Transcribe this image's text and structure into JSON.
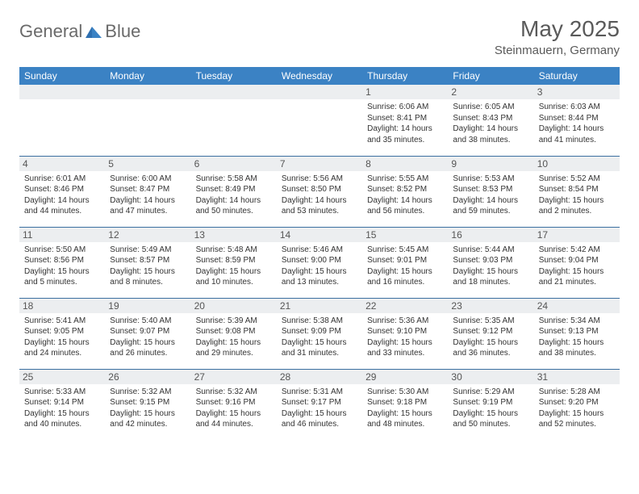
{
  "logo": {
    "textA": "General",
    "textB": "Blue"
  },
  "title": "May 2025",
  "location": "Steinmauern, Germany",
  "colors": {
    "header_bg": "#3b82c4",
    "header_text": "#ffffff",
    "border": "#3b6fa0",
    "daynum_bg": "#eceef0",
    "body_text": "#333333",
    "title_text": "#5a5a5a"
  },
  "weekdays": [
    "Sunday",
    "Monday",
    "Tuesday",
    "Wednesday",
    "Thursday",
    "Friday",
    "Saturday"
  ],
  "weeks": [
    [
      {
        "n": "",
        "sr": "",
        "ss": "",
        "dl": ""
      },
      {
        "n": "",
        "sr": "",
        "ss": "",
        "dl": ""
      },
      {
        "n": "",
        "sr": "",
        "ss": "",
        "dl": ""
      },
      {
        "n": "",
        "sr": "",
        "ss": "",
        "dl": ""
      },
      {
        "n": "1",
        "sr": "Sunrise: 6:06 AM",
        "ss": "Sunset: 8:41 PM",
        "dl": "Daylight: 14 hours and 35 minutes."
      },
      {
        "n": "2",
        "sr": "Sunrise: 6:05 AM",
        "ss": "Sunset: 8:43 PM",
        "dl": "Daylight: 14 hours and 38 minutes."
      },
      {
        "n": "3",
        "sr": "Sunrise: 6:03 AM",
        "ss": "Sunset: 8:44 PM",
        "dl": "Daylight: 14 hours and 41 minutes."
      }
    ],
    [
      {
        "n": "4",
        "sr": "Sunrise: 6:01 AM",
        "ss": "Sunset: 8:46 PM",
        "dl": "Daylight: 14 hours and 44 minutes."
      },
      {
        "n": "5",
        "sr": "Sunrise: 6:00 AM",
        "ss": "Sunset: 8:47 PM",
        "dl": "Daylight: 14 hours and 47 minutes."
      },
      {
        "n": "6",
        "sr": "Sunrise: 5:58 AM",
        "ss": "Sunset: 8:49 PM",
        "dl": "Daylight: 14 hours and 50 minutes."
      },
      {
        "n": "7",
        "sr": "Sunrise: 5:56 AM",
        "ss": "Sunset: 8:50 PM",
        "dl": "Daylight: 14 hours and 53 minutes."
      },
      {
        "n": "8",
        "sr": "Sunrise: 5:55 AM",
        "ss": "Sunset: 8:52 PM",
        "dl": "Daylight: 14 hours and 56 minutes."
      },
      {
        "n": "9",
        "sr": "Sunrise: 5:53 AM",
        "ss": "Sunset: 8:53 PM",
        "dl": "Daylight: 14 hours and 59 minutes."
      },
      {
        "n": "10",
        "sr": "Sunrise: 5:52 AM",
        "ss": "Sunset: 8:54 PM",
        "dl": "Daylight: 15 hours and 2 minutes."
      }
    ],
    [
      {
        "n": "11",
        "sr": "Sunrise: 5:50 AM",
        "ss": "Sunset: 8:56 PM",
        "dl": "Daylight: 15 hours and 5 minutes."
      },
      {
        "n": "12",
        "sr": "Sunrise: 5:49 AM",
        "ss": "Sunset: 8:57 PM",
        "dl": "Daylight: 15 hours and 8 minutes."
      },
      {
        "n": "13",
        "sr": "Sunrise: 5:48 AM",
        "ss": "Sunset: 8:59 PM",
        "dl": "Daylight: 15 hours and 10 minutes."
      },
      {
        "n": "14",
        "sr": "Sunrise: 5:46 AM",
        "ss": "Sunset: 9:00 PM",
        "dl": "Daylight: 15 hours and 13 minutes."
      },
      {
        "n": "15",
        "sr": "Sunrise: 5:45 AM",
        "ss": "Sunset: 9:01 PM",
        "dl": "Daylight: 15 hours and 16 minutes."
      },
      {
        "n": "16",
        "sr": "Sunrise: 5:44 AM",
        "ss": "Sunset: 9:03 PM",
        "dl": "Daylight: 15 hours and 18 minutes."
      },
      {
        "n": "17",
        "sr": "Sunrise: 5:42 AM",
        "ss": "Sunset: 9:04 PM",
        "dl": "Daylight: 15 hours and 21 minutes."
      }
    ],
    [
      {
        "n": "18",
        "sr": "Sunrise: 5:41 AM",
        "ss": "Sunset: 9:05 PM",
        "dl": "Daylight: 15 hours and 24 minutes."
      },
      {
        "n": "19",
        "sr": "Sunrise: 5:40 AM",
        "ss": "Sunset: 9:07 PM",
        "dl": "Daylight: 15 hours and 26 minutes."
      },
      {
        "n": "20",
        "sr": "Sunrise: 5:39 AM",
        "ss": "Sunset: 9:08 PM",
        "dl": "Daylight: 15 hours and 29 minutes."
      },
      {
        "n": "21",
        "sr": "Sunrise: 5:38 AM",
        "ss": "Sunset: 9:09 PM",
        "dl": "Daylight: 15 hours and 31 minutes."
      },
      {
        "n": "22",
        "sr": "Sunrise: 5:36 AM",
        "ss": "Sunset: 9:10 PM",
        "dl": "Daylight: 15 hours and 33 minutes."
      },
      {
        "n": "23",
        "sr": "Sunrise: 5:35 AM",
        "ss": "Sunset: 9:12 PM",
        "dl": "Daylight: 15 hours and 36 minutes."
      },
      {
        "n": "24",
        "sr": "Sunrise: 5:34 AM",
        "ss": "Sunset: 9:13 PM",
        "dl": "Daylight: 15 hours and 38 minutes."
      }
    ],
    [
      {
        "n": "25",
        "sr": "Sunrise: 5:33 AM",
        "ss": "Sunset: 9:14 PM",
        "dl": "Daylight: 15 hours and 40 minutes."
      },
      {
        "n": "26",
        "sr": "Sunrise: 5:32 AM",
        "ss": "Sunset: 9:15 PM",
        "dl": "Daylight: 15 hours and 42 minutes."
      },
      {
        "n": "27",
        "sr": "Sunrise: 5:32 AM",
        "ss": "Sunset: 9:16 PM",
        "dl": "Daylight: 15 hours and 44 minutes."
      },
      {
        "n": "28",
        "sr": "Sunrise: 5:31 AM",
        "ss": "Sunset: 9:17 PM",
        "dl": "Daylight: 15 hours and 46 minutes."
      },
      {
        "n": "29",
        "sr": "Sunrise: 5:30 AM",
        "ss": "Sunset: 9:18 PM",
        "dl": "Daylight: 15 hours and 48 minutes."
      },
      {
        "n": "30",
        "sr": "Sunrise: 5:29 AM",
        "ss": "Sunset: 9:19 PM",
        "dl": "Daylight: 15 hours and 50 minutes."
      },
      {
        "n": "31",
        "sr": "Sunrise: 5:28 AM",
        "ss": "Sunset: 9:20 PM",
        "dl": "Daylight: 15 hours and 52 minutes."
      }
    ]
  ]
}
